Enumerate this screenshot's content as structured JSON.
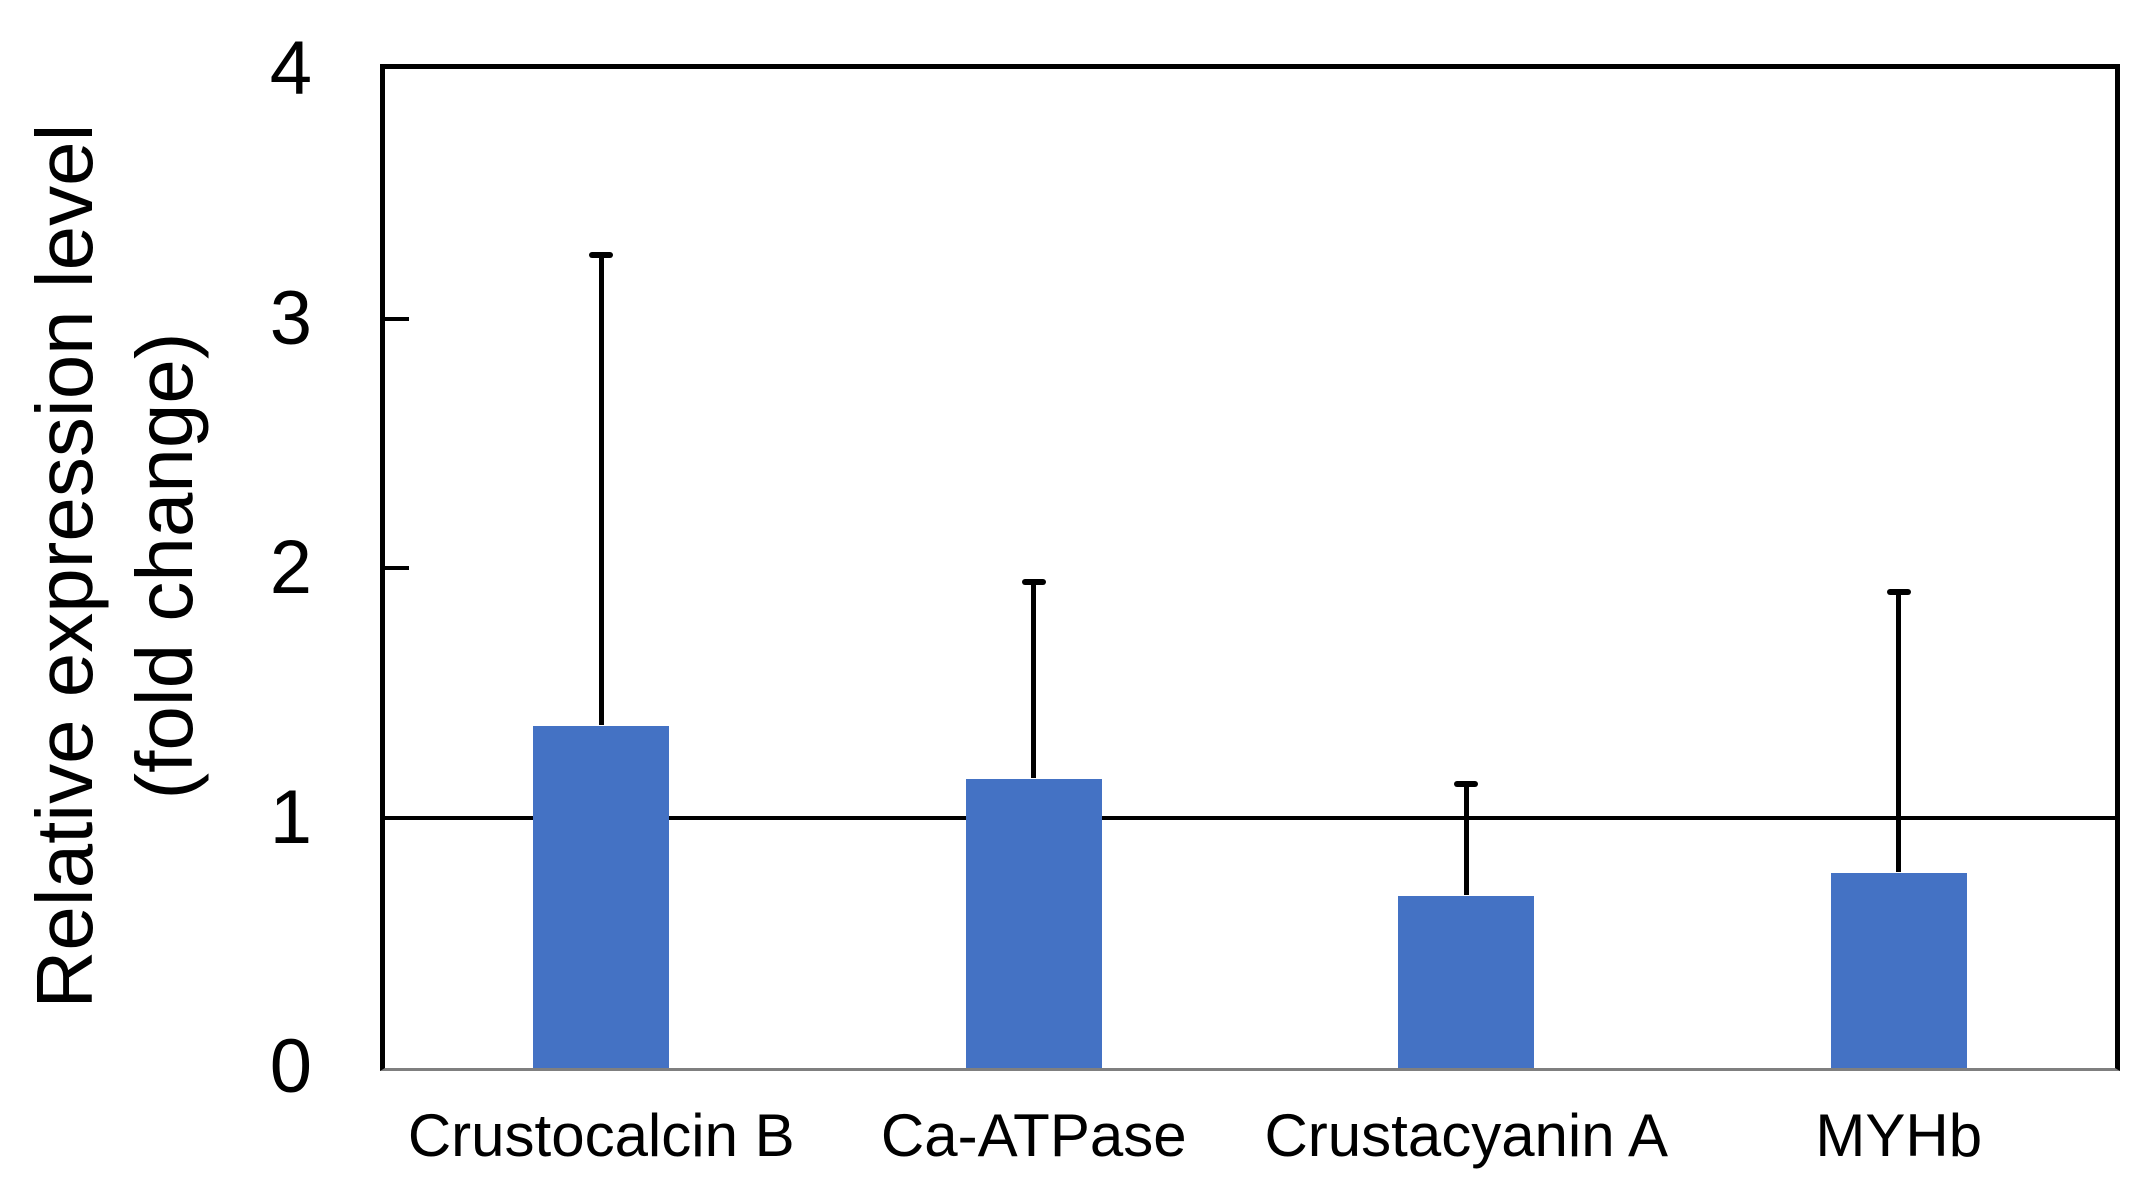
{
  "chart_data": {
    "type": "bar",
    "title": "",
    "categories": [
      "Crustocalcin B",
      "Ca-ATPase",
      "Crustacyanin A",
      "MYHb"
    ],
    "values": [
      1.37,
      1.16,
      0.69,
      0.78
    ],
    "error_upper": [
      1.88,
      0.78,
      0.44,
      1.12
    ],
    "error_top_absolute": [
      3.25,
      1.94,
      1.13,
      1.9
    ],
    "xlabel": "",
    "ylabel": "Relative expression level (fold change)",
    "ylabel_line1": "Relative expression level",
    "ylabel_line2": "(fold change)",
    "yticks": [
      0,
      1,
      2,
      3,
      4
    ],
    "ylim": [
      0,
      4
    ],
    "reference_line_y": 1,
    "grid": false,
    "legend_position": "none",
    "bar_color": "#4472C4",
    "axis_color": "#000000",
    "baseline_color": "#7f7f7f",
    "error_bar_color": "#000000"
  }
}
